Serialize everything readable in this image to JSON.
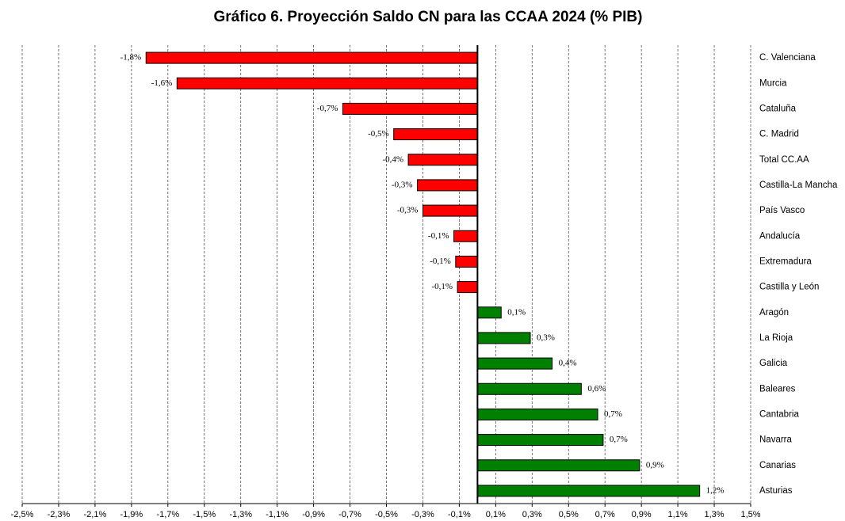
{
  "chart_data": {
    "type": "hbar",
    "title": "Gráfico 6. Proyección Saldo CN para las CCAA 2024 (% PIB)",
    "categories": [
      "C. Valenciana",
      "Murcia",
      "Cataluña",
      "C. Madrid",
      "Total CC.AA",
      "Castilla-La Mancha",
      "País Vasco",
      "Andalucía",
      "Extremadura",
      "Castilla y León",
      "Aragón",
      "La Rioja",
      "Galicia",
      "Baleares",
      "Cantabria",
      "Navarra",
      "Canarias",
      "Asturias"
    ],
    "values": [
      -1.82,
      -1.65,
      -0.74,
      -0.46,
      -0.38,
      -0.33,
      -0.3,
      -0.13,
      -0.12,
      -0.11,
      0.13,
      0.29,
      0.41,
      0.57,
      0.66,
      0.69,
      0.89,
      1.22
    ],
    "value_labels": [
      "-1,8%",
      "-1,6%",
      "-0,7%",
      "-0,5%",
      "-0,4%",
      "-0,3%",
      "-0,3%",
      "-0,1%",
      "-0,1%",
      "-0,1%",
      "0,1%",
      "0,3%",
      "0,4%",
      "0,6%",
      "0,7%",
      "0,7%",
      "0,9%",
      "1,2%"
    ],
    "negative_color": "#ff0000",
    "positive_color": "#008000",
    "xlim": [
      -2.5,
      1.5
    ],
    "xticks": [
      {
        "value": -2.5,
        "label": "-2,5%"
      },
      {
        "value": -2.3,
        "label": "-2,3%"
      },
      {
        "value": -2.1,
        "label": "-2,1%"
      },
      {
        "value": -1.9,
        "label": "-1,9%"
      },
      {
        "value": -1.7,
        "label": "-1,7%"
      },
      {
        "value": -1.5,
        "label": "-1,5%"
      },
      {
        "value": -1.3,
        "label": "-1,3%"
      },
      {
        "value": -1.1,
        "label": "-1,1%"
      },
      {
        "value": -0.9,
        "label": "-0,9%"
      },
      {
        "value": -0.7,
        "label": "-0,7%"
      },
      {
        "value": -0.5,
        "label": "-0,5%"
      },
      {
        "value": -0.3,
        "label": "-0,3%"
      },
      {
        "value": -0.1,
        "label": "-0,1%"
      },
      {
        "value": 0.1,
        "label": "0,1%"
      },
      {
        "value": 0.3,
        "label": "0,3%"
      },
      {
        "value": 0.5,
        "label": "0,5%"
      },
      {
        "value": 0.7,
        "label": "0,7%"
      },
      {
        "value": 0.9,
        "label": "0,9%"
      },
      {
        "value": 1.1,
        "label": "1,1%"
      },
      {
        "value": 1.3,
        "label": "1,3%"
      },
      {
        "value": 1.5,
        "label": "1,5%"
      }
    ],
    "grid": true
  }
}
